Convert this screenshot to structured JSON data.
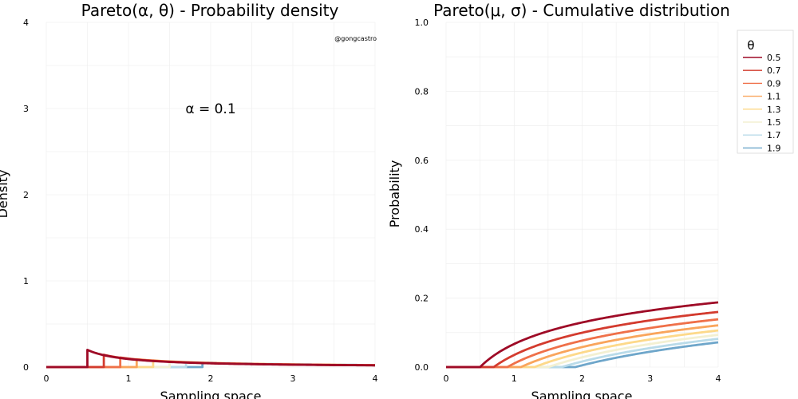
{
  "chart_data": [
    {
      "type": "line",
      "title": "Pareto(α, θ) - Probability density",
      "xlabel": "Sampling space",
      "ylabel": "Density",
      "xlim": [
        0,
        4
      ],
      "ylim": [
        0,
        4
      ],
      "xticks": [
        0,
        1,
        2,
        3,
        4
      ],
      "yticks": [
        0,
        1,
        2,
        3,
        4
      ],
      "annotation": "α = 0.1",
      "credit": "@gongcastro",
      "alpha": 0.1,
      "grid": true,
      "function": "pdf"
    },
    {
      "type": "line",
      "title": "Pareto(μ, σ) - Cumulative distribution",
      "xlabel": "Sampling space",
      "ylabel": "Probability",
      "xlim": [
        0,
        4
      ],
      "ylim": [
        0,
        1
      ],
      "xticks": [
        0,
        1,
        2,
        3,
        4
      ],
      "yticks": [
        0.0,
        0.2,
        0.4,
        0.6,
        0.8,
        1.0
      ],
      "ytick_labels": [
        "0.0",
        "0.2",
        "0.4",
        "0.6",
        "0.8",
        "1.0"
      ],
      "alpha": 0.1,
      "grid": true,
      "function": "cdf",
      "legend": {
        "title": "θ",
        "position": "top-right-outside"
      }
    }
  ],
  "series": [
    {
      "name": "0.5",
      "theta": 0.5,
      "color": "#9e0a26"
    },
    {
      "name": "0.7",
      "theta": 0.7,
      "color": "#d33b2e"
    },
    {
      "name": "0.9",
      "theta": 0.9,
      "color": "#ef7049"
    },
    {
      "name": "1.1",
      "theta": 1.1,
      "color": "#f9a55c"
    },
    {
      "name": "1.3",
      "theta": 1.3,
      "color": "#fdd98a"
    },
    {
      "name": "1.5",
      "theta": 1.5,
      "color": "#f3f0d2"
    },
    {
      "name": "1.7",
      "theta": 1.7,
      "color": "#b9dbe9"
    },
    {
      "name": "1.9",
      "theta": 1.9,
      "color": "#6ea6ca"
    }
  ]
}
